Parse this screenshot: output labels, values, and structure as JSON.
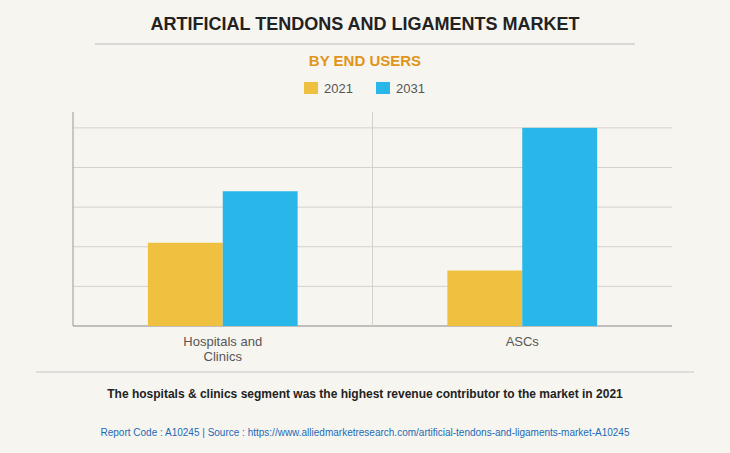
{
  "chart_data": {
    "type": "bar",
    "title": "ARTIFICIAL TENDONS AND LIGAMENTS MARKET",
    "subtitle": "BY END USERS",
    "categories": [
      "Hospitals and\nClinics",
      "ASCs"
    ],
    "series": [
      {
        "name": "2021",
        "color": "#F0C040",
        "values": [
          0.42,
          0.28
        ]
      },
      {
        "name": "2031",
        "color": "#29B6E8",
        "values": [
          0.68,
          1.0
        ]
      }
    ],
    "ylim": [
      0,
      1.08
    ],
    "yticks": [
      0,
      0.2,
      0.4,
      0.6,
      0.8,
      1.0
    ],
    "grid": true,
    "legend": "top",
    "tick_labels": "x",
    "annotations": [
      "The hospitals & clinics segment was the highest revenue contributor to the market in 2021",
      "Report Code : A10245  |  Source : https://www.alliedmarketresearch.com/artificial-tendons-and-ligaments-market-A10245"
    ]
  }
}
